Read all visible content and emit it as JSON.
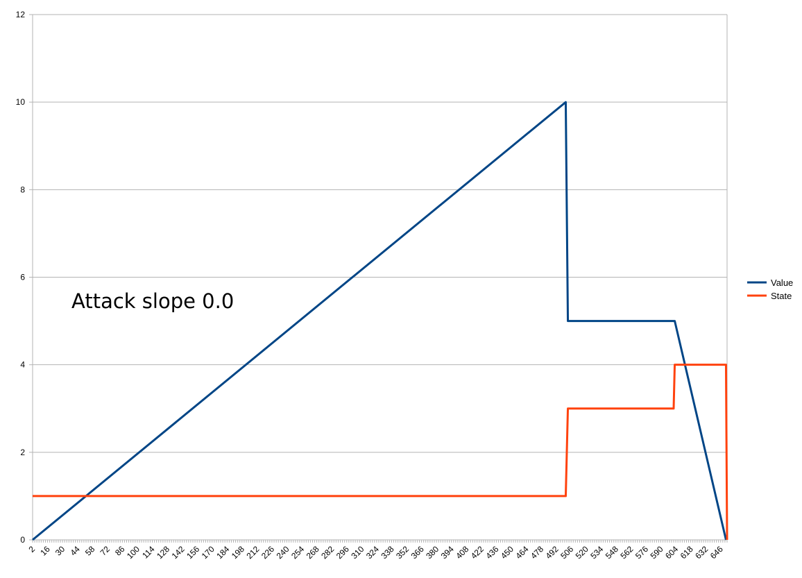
{
  "chart_data": {
    "type": "line",
    "annotation": "Attack slope 0.0",
    "ylim": [
      0,
      12
    ],
    "y_ticks": [
      "0",
      "2",
      "4",
      "6",
      "8",
      "10",
      "12"
    ],
    "xlim": [
      2,
      652
    ],
    "x_ticks": [
      "2",
      "16",
      "30",
      "44",
      "58",
      "72",
      "86",
      "100",
      "114",
      "128",
      "142",
      "156",
      "170",
      "184",
      "198",
      "212",
      "226",
      "240",
      "254",
      "268",
      "282",
      "296",
      "310",
      "324",
      "338",
      "352",
      "366",
      "380",
      "394",
      "408",
      "422",
      "436",
      "450",
      "464",
      "478",
      "492",
      "506",
      "520",
      "534",
      "548",
      "562",
      "576",
      "590",
      "604",
      "618",
      "632",
      "646"
    ],
    "grid": "horizontal",
    "legend": "right",
    "series": [
      {
        "name": "Value",
        "color": "#004586",
        "points": [
          [
            2,
            0
          ],
          [
            501,
            10
          ],
          [
            503,
            5
          ],
          [
            603,
            5
          ],
          [
            651,
            0
          ]
        ]
      },
      {
        "name": "State",
        "color": "#ff420e",
        "points": [
          [
            2,
            1
          ],
          [
            501,
            1
          ],
          [
            503,
            3
          ],
          [
            602,
            3
          ],
          [
            603,
            4
          ],
          [
            651,
            4
          ],
          [
            652,
            0
          ]
        ]
      }
    ]
  }
}
